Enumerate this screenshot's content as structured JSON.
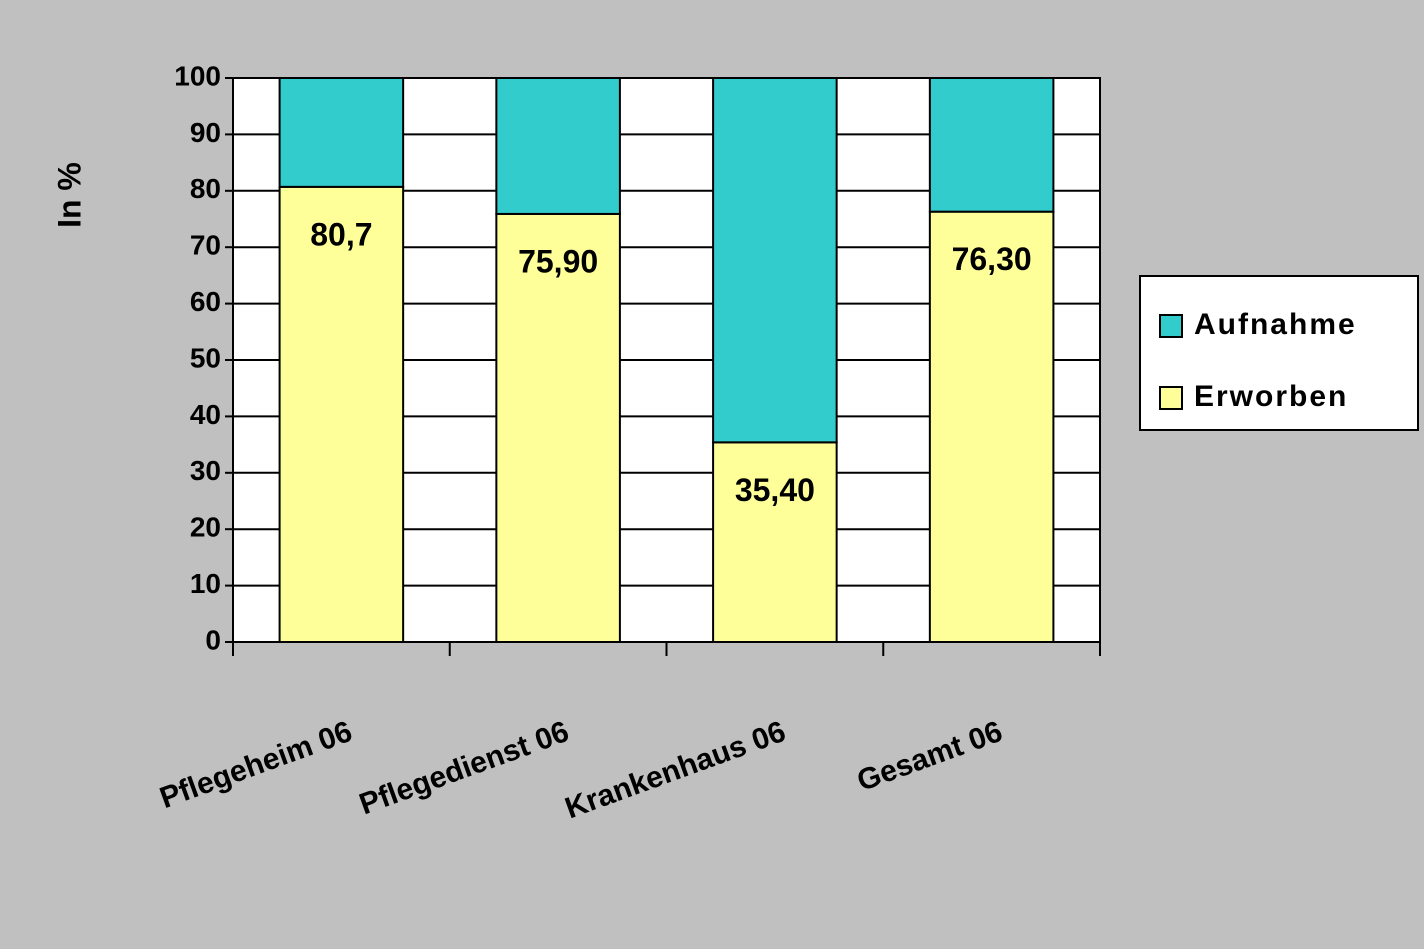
{
  "chart_data": {
    "type": "stacked_bar",
    "y_label": "In %",
    "categories": [
      "Pflegeheim 06",
      "Pflegedienst 06",
      "Krankenhaus 06",
      "Gesamt 06"
    ],
    "series": [
      {
        "name": "Erworben",
        "color": "#ffff99",
        "values": [
          80.7,
          75.9,
          35.4,
          76.3
        ],
        "value_labels": [
          "80,7",
          "75,90",
          "35,40",
          "76,30"
        ]
      },
      {
        "name": "Aufnahme",
        "color": "#33cccc",
        "values": [
          19.3,
          24.1,
          64.6,
          23.7
        ]
      }
    ],
    "ylim": [
      0,
      100
    ],
    "yticks": [
      0,
      10,
      20,
      30,
      40,
      50,
      60,
      70,
      80,
      90,
      100
    ],
    "grid": true,
    "legend": "right"
  }
}
